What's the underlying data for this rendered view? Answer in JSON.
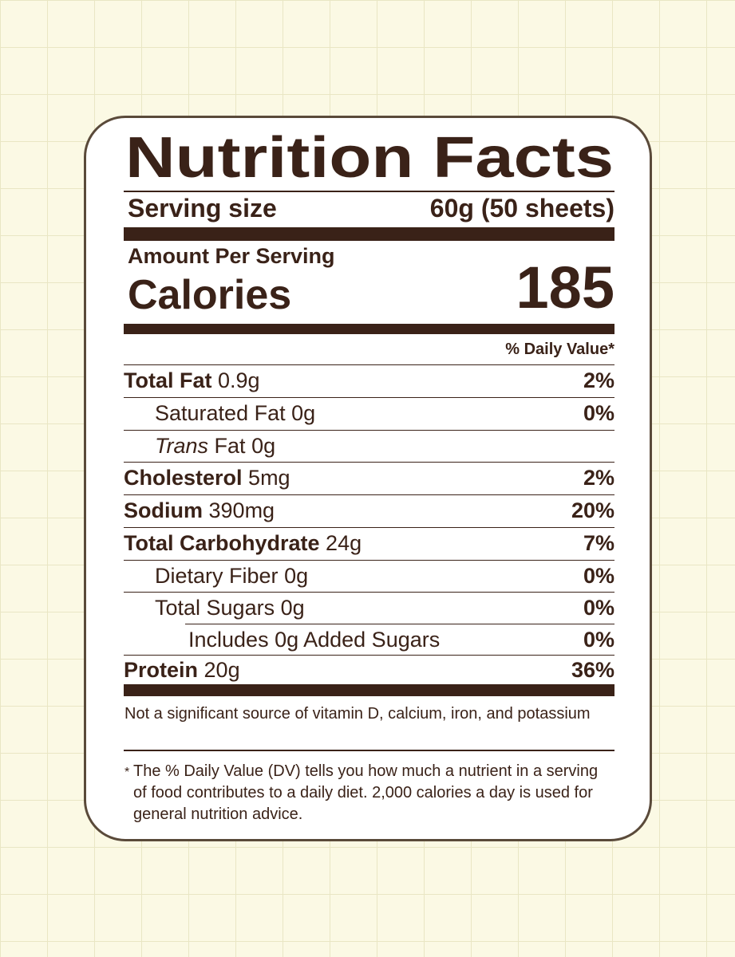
{
  "title": "Nutrition Facts",
  "serving": {
    "label": "Serving size",
    "value": "60g (50 sheets)"
  },
  "amount_per_serving": "Amount Per Serving",
  "calories": {
    "label": "Calories",
    "value": "185"
  },
  "dv_header": "% Daily Value*",
  "rows": [
    {
      "name": "Total Fat",
      "amount": "0.9g",
      "dv": "2%"
    },
    {
      "name": "Saturated Fat",
      "amount": "0g",
      "dv": "0%"
    },
    {
      "name_italic": "Trans",
      "name": "Fat",
      "amount": "0g"
    },
    {
      "name": "Cholesterol",
      "amount": "5mg",
      "dv": "2%"
    },
    {
      "name": "Sodium",
      "amount": "390mg",
      "dv": "20%"
    },
    {
      "name": "Total Carbohydrate",
      "amount": "24g",
      "dv": "7%"
    },
    {
      "name": "Dietary Fiber",
      "amount": "0g",
      "dv": "0%"
    },
    {
      "name": "Total Sugars",
      "amount": "0g",
      "dv": "0%"
    },
    {
      "name": "Includes 0g Added Sugars",
      "dv": "0%"
    },
    {
      "name": "Protein",
      "amount": "20g",
      "dv": "36%"
    }
  ],
  "note": "Not a significant source of vitamin D, calcium, iron, and potassium",
  "footnote": {
    "marker": "*",
    "text": "The % Daily Value (DV) tells you how much a nutrient in a serving of food contributes to a daily diet. 2,000 calories a day is used for general nutrition advice."
  }
}
